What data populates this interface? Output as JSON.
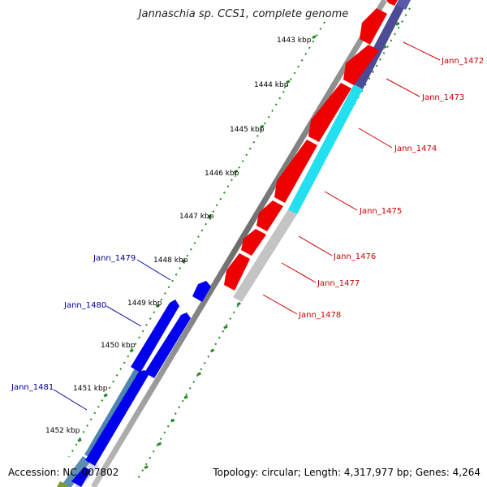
{
  "title": "Jannaschia sp. CCS1, complete genome",
  "footer": {
    "accession": "Accession: NC_007802",
    "summary": "Topology: circular; Length: 4,317,977 bp; Genes: 4,264"
  },
  "colors": {
    "forward_cds": "#0000ee",
    "reverse_cds": "#ee0000",
    "forward_label": "#000099",
    "reverse_label": "#cc0000",
    "tick": "#228b22",
    "backbone": "#7f7f7f",
    "dark_band": "#4b4b96",
    "cyan_band": "#22e0f0",
    "grey_band": "#c4c4c4",
    "steel_band": "#4f86b0"
  },
  "scale_labels": [
    "1443 kbp",
    "1444 kbp",
    "1445 kbp",
    "1446 kbp",
    "1447 kbp",
    "1448 kbp",
    "1449 kbp",
    "1450 kbp",
    "1451 kbp",
    "1452 kbp"
  ],
  "genes_reverse": [
    "Jann_1472",
    "Jann_1473",
    "Jann_1474",
    "Jann_1475",
    "Jann_1476",
    "Jann_1477",
    "Jann_1478"
  ],
  "genes_forward": [
    "Jann_1479",
    "Jann_1480",
    "Jann_1481"
  ]
}
